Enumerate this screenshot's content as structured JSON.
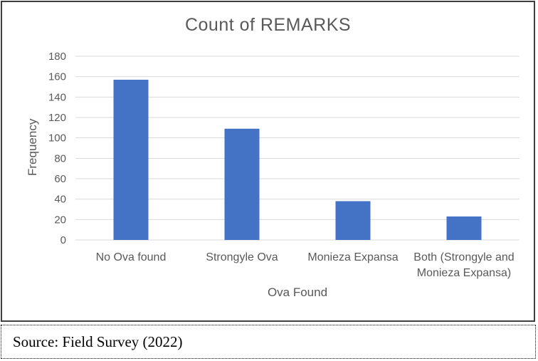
{
  "chart_data": {
    "type": "bar",
    "title": "Count of REMARKS",
    "xlabel": "Ova Found",
    "ylabel": "Frequency",
    "categories": [
      "No Ova found",
      "Strongyle Ova",
      "Monieza Expansa",
      "Both (Strongyle and\nMonieza Expansa)"
    ],
    "values": [
      157,
      109,
      38,
      23
    ],
    "ylim": [
      0,
      180
    ],
    "yticks": [
      0,
      20,
      40,
      60,
      80,
      100,
      120,
      140,
      160,
      180
    ],
    "grid": true,
    "legend_position": "none",
    "bar_color": "#4472C4",
    "gridline_color": "#D9D9D9",
    "text_color": "#595959"
  },
  "source_note": {
    "text": "Source: Field Survey (2022)"
  }
}
